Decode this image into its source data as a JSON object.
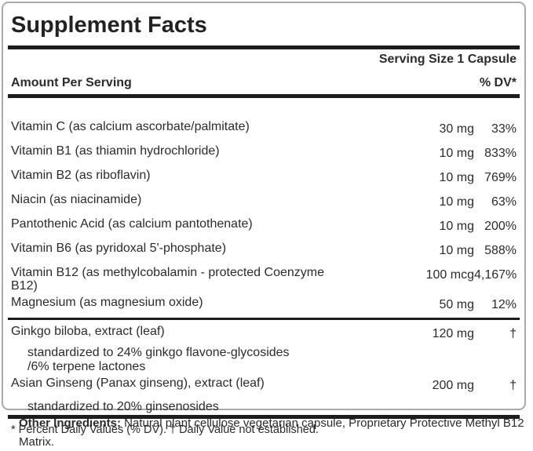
{
  "panel": {
    "title": "Supplement Facts",
    "serving_size": "Serving Size 1 Capsule",
    "amount_per_serving_label": "Amount Per Serving",
    "percent_dv_label": "% DV*",
    "nutrients": [
      {
        "label": "Vitamin C (as calcium ascorbate/palmitate)",
        "amount": "30 mg",
        "dv": "33%"
      },
      {
        "label": "Vitamin B1 (as thiamin hydrochloride)",
        "amount": "10 mg",
        "dv": "833%"
      },
      {
        "label": "Vitamin B2 (as riboflavin)",
        "amount": "10 mg",
        "dv": "769%"
      },
      {
        "label": "Niacin (as niacinamide)",
        "amount": "10 mg",
        "dv": "63%"
      },
      {
        "label": "Pantothenic Acid (as calcium pantothenate)",
        "amount": "10 mg",
        "dv": "200%"
      },
      {
        "label": "Vitamin B6 (as pyridoxal 5'-phosphate)",
        "amount": "10 mg",
        "dv": "588%"
      },
      {
        "label": "Vitamin B12 (as methylcobalamin - protected Coenzyme",
        "label_line2": "B12)",
        "amount": "100 mcg",
        "dv": "4,167%"
      },
      {
        "label": "Magnesium (as magnesium oxide)",
        "amount": "50 mg",
        "dv": "12%"
      }
    ],
    "botanicals": [
      {
        "label": "Ginkgo biloba, extract (leaf)",
        "amount": "120 mg",
        "dv": "†",
        "notes": [
          "standardized to 24% ginkgo flavone-glycosides",
          "/6% terpene lactones"
        ]
      },
      {
        "label": "Asian Ginseng (Panax ginseng), extract (leaf)",
        "amount": "200 mg",
        "dv": "†",
        "notes": [
          "standardized to 20% ginsenosides"
        ]
      }
    ],
    "footnote": "* Percent Daily Values (% DV). † Daily Value not established."
  },
  "other_ingredients": {
    "label": "Other Ingredients:",
    "text": " Natural plant cellulose vegetarian capsule, Proprietary Protective Methyl B12 Matrix."
  },
  "colors": {
    "bar": "#1d1d1d",
    "border": "#aaaaaa",
    "text": "#2b2b2b"
  }
}
